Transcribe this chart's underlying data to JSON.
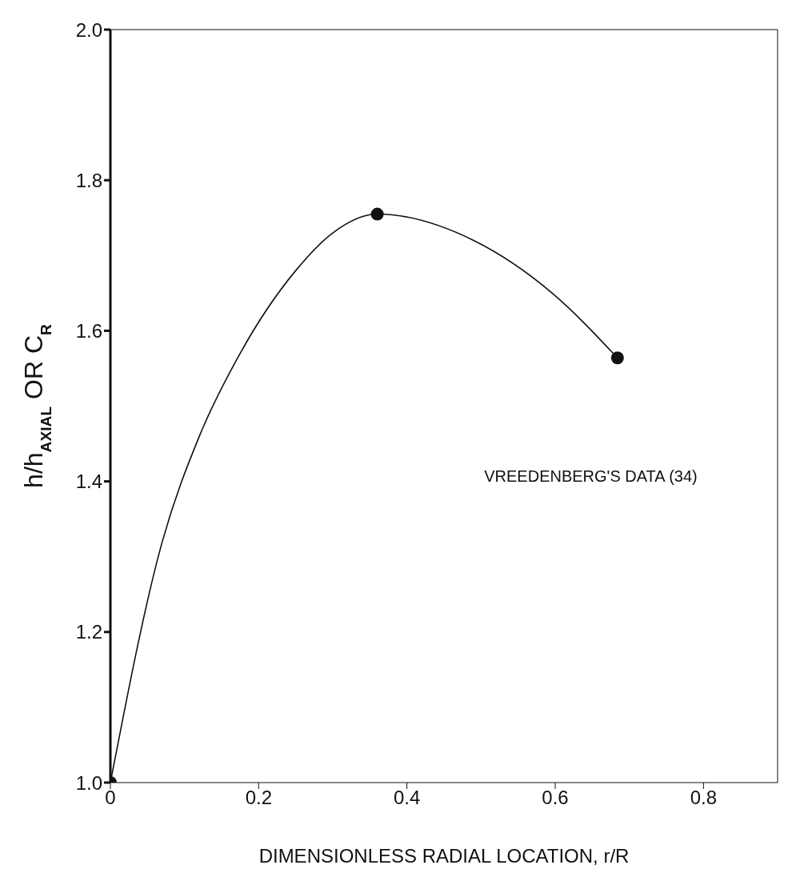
{
  "chart_data": {
    "type": "line",
    "xlabel": "DIMENSIONLESS RADIAL LOCATION,   r/R",
    "ylabel": "h/h$_{AXIAL}$   OR   C$_{R}$",
    "annotations": [
      "VREEDENBERG'S DATA (34)"
    ],
    "xlim": [
      0,
      0.9
    ],
    "xticks": [
      0,
      0.2,
      0.4,
      0.6,
      0.8
    ],
    "ylim": [
      1.0,
      2.0
    ],
    "yticks": [
      {
        "value": 1.0,
        "label": "1.0"
      },
      1.2,
      1.4,
      1.6,
      1.8,
      {
        "value": 2.0,
        "label": "2.0"
      }
    ],
    "series": [
      {
        "color": "#111111",
        "marker": "none",
        "x": [
          0,
          0.07,
          0.12,
          0.175,
          0.25,
          0.3,
          0.36,
          0.49,
          0.596,
          0.684
        ],
        "values": [
          1.0,
          1.32,
          1.46,
          1.57,
          1.68,
          1.73,
          1.755,
          1.72,
          1.65,
          1.564
        ]
      },
      {
        "type": "scatter",
        "color": "#111111",
        "marker": "circle",
        "x": [
          0,
          0.36,
          0.684
        ],
        "values": [
          1.0,
          1.755,
          1.564
        ]
      }
    ]
  }
}
